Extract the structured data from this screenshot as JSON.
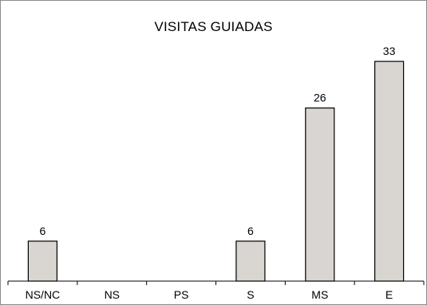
{
  "chart_data": {
    "type": "bar",
    "title": "VISITAS GUIADAS",
    "categories": [
      "NS/NC",
      "NS",
      "PS",
      "S",
      "MS",
      "E"
    ],
    "values": [
      6,
      0,
      0,
      6,
      26,
      33
    ],
    "data_labels": [
      "6",
      "",
      "",
      "6",
      "26",
      "33"
    ],
    "xlabel": "",
    "ylabel": "",
    "ylim": [
      0,
      36
    ],
    "grid": false,
    "legend": "none",
    "bar_color": "#d9d5d0",
    "bar_edge_color": "#000000"
  }
}
